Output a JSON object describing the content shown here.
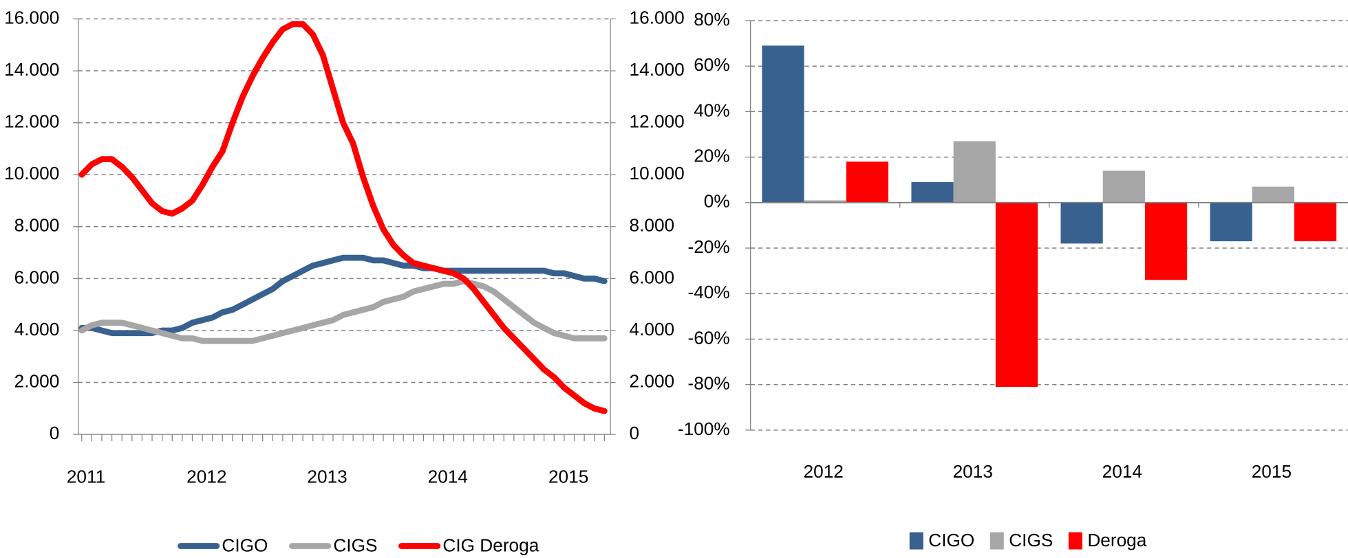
{
  "chart_data": [
    {
      "type": "line",
      "categories": [
        "2011",
        null,
        null,
        null,
        null,
        null,
        null,
        null,
        null,
        null,
        null,
        null,
        "2012",
        null,
        null,
        null,
        null,
        null,
        null,
        null,
        null,
        null,
        null,
        null,
        "2013",
        null,
        null,
        null,
        null,
        null,
        null,
        null,
        null,
        null,
        null,
        null,
        "2014",
        null,
        null,
        null,
        null,
        null,
        null,
        null,
        null,
        null,
        null,
        null,
        "2015",
        null,
        null,
        null,
        null
      ],
      "series": [
        {
          "name": "CIGO",
          "color": "#38618f",
          "values": [
            4100,
            4100,
            4000,
            3900,
            3900,
            3900,
            3900,
            3900,
            4000,
            4000,
            4100,
            4300,
            4400,
            4500,
            4700,
            4800,
            5000,
            5200,
            5400,
            5600,
            5900,
            6100,
            6300,
            6500,
            6600,
            6700,
            6800,
            6800,
            6800,
            6700,
            6700,
            6600,
            6500,
            6500,
            6400,
            6400,
            6300,
            6300,
            6300,
            6300,
            6300,
            6300,
            6300,
            6300,
            6300,
            6300,
            6300,
            6200,
            6200,
            6100,
            6000,
            6000,
            5900
          ]
        },
        {
          "name": "CIGS",
          "color": "#a6a6a6",
          "values": [
            4000,
            4200,
            4300,
            4300,
            4300,
            4200,
            4100,
            4000,
            3900,
            3800,
            3700,
            3700,
            3600,
            3600,
            3600,
            3600,
            3600,
            3600,
            3700,
            3800,
            3900,
            4000,
            4100,
            4200,
            4300,
            4400,
            4600,
            4700,
            4800,
            4900,
            5100,
            5200,
            5300,
            5500,
            5600,
            5700,
            5800,
            5800,
            5900,
            5800,
            5700,
            5500,
            5200,
            4900,
            4600,
            4300,
            4100,
            3900,
            3800,
            3700,
            3700,
            3700,
            3700
          ]
        },
        {
          "name": "CIG Deroga",
          "color": "#ff0000",
          "values": [
            10000,
            10400,
            10600,
            10600,
            10300,
            9900,
            9400,
            8900,
            8600,
            8500,
            8700,
            9000,
            9600,
            10300,
            10900,
            12000,
            13000,
            13800,
            14500,
            15100,
            15600,
            15800,
            15800,
            15400,
            14600,
            13300,
            12000,
            11200,
            9900,
            8800,
            7900,
            7300,
            6900,
            6600,
            6500,
            6400,
            6300,
            6200,
            6000,
            5600,
            5100,
            4600,
            4100,
            3700,
            3300,
            2900,
            2500,
            2200,
            1800,
            1500,
            1200,
            1000,
            900
          ]
        }
      ],
      "ylim": [
        0,
        16000
      ],
      "yticks": [
        {
          "value": 0,
          "label": "0"
        },
        {
          "value": 2000,
          "label": "2.000"
        },
        {
          "value": 4000,
          "label": "4.000"
        },
        {
          "value": 6000,
          "label": "6.000"
        },
        {
          "value": 8000,
          "label": "8.000"
        },
        {
          "value": 10000,
          "label": "10.000"
        },
        {
          "value": 12000,
          "label": "12.000"
        },
        {
          "value": 14000,
          "label": "14.000"
        },
        {
          "value": 16000,
          "label": "16.000"
        }
      ],
      "y2lim": [
        0,
        16000
      ],
      "y2ticks": [
        {
          "value": 0,
          "label": "0"
        },
        {
          "value": 2000,
          "label": "2.000"
        },
        {
          "value": 4000,
          "label": "4.000"
        },
        {
          "value": 6000,
          "label": "6.000"
        },
        {
          "value": 8000,
          "label": "8.000"
        },
        {
          "value": 10000,
          "label": "10.000"
        },
        {
          "value": 12000,
          "label": "12.000"
        },
        {
          "value": 14000,
          "label": "14.000"
        },
        {
          "value": 16000,
          "label": "16.000"
        }
      ],
      "grid": true,
      "legend": "bottom"
    },
    {
      "type": "bar",
      "categories": [
        "2012",
        "2013",
        "2014",
        "2015"
      ],
      "series": [
        {
          "name": "CIGO",
          "color": "#38618f",
          "values": [
            69,
            9,
            -18,
            -17
          ]
        },
        {
          "name": "CIGS",
          "color": "#a6a6a6",
          "values": [
            1,
            27,
            14,
            7
          ]
        },
        {
          "name": "Deroga",
          "color": "#ff0000",
          "values": [
            18,
            -81,
            -34,
            -17
          ]
        }
      ],
      "ylim": [
        -100,
        80
      ],
      "yticks": [
        {
          "value": -100,
          "label": "-100%"
        },
        {
          "value": -80,
          "label": "-80%"
        },
        {
          "value": -60,
          "label": "-60%"
        },
        {
          "value": -40,
          "label": "-40%"
        },
        {
          "value": -20,
          "label": "-20%"
        },
        {
          "value": 0,
          "label": "0%"
        },
        {
          "value": 20,
          "label": "20%"
        },
        {
          "value": 40,
          "label": "40%"
        },
        {
          "value": 60,
          "label": "60%"
        },
        {
          "value": 80,
          "label": "80%"
        }
      ],
      "grid": true,
      "legend": "bottom"
    }
  ]
}
